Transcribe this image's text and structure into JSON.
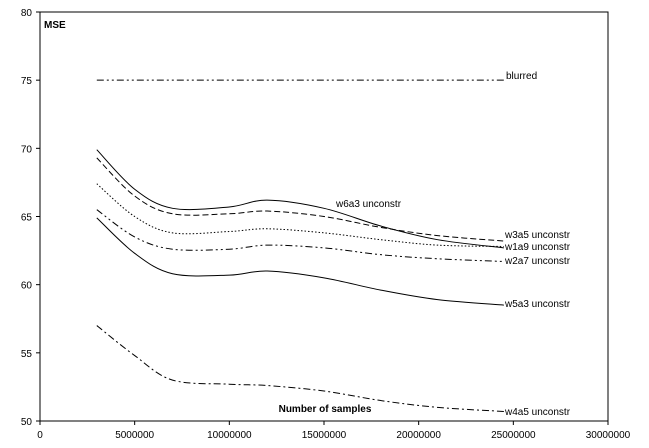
{
  "chart_data": {
    "type": "line",
    "title": "",
    "xlabel": "Number of samples",
    "ylabel": "MSE",
    "xlim": [
      0,
      30000000
    ],
    "ylim": [
      50,
      80
    ],
    "xticks": [
      0,
      5000000,
      10000000,
      15000000,
      20000000,
      25000000,
      30000000
    ],
    "xtick_labels": [
      "0",
      "5000000",
      "10000000",
      "15000000",
      "20000000",
      "25000000",
      "30000000"
    ],
    "yticks": [
      50,
      55,
      60,
      65,
      70,
      75,
      80
    ],
    "ytick_labels": [
      "50",
      "55",
      "60",
      "65",
      "70",
      "75",
      "80"
    ],
    "grid": false,
    "legend": "inline labels",
    "series": [
      {
        "name": "blurred",
        "style": "dashdotdot",
        "color": "#000000",
        "x": [
          3000000,
          24500000
        ],
        "y": [
          75,
          75
        ]
      },
      {
        "name": "w6a3 unconstr",
        "style": "solid",
        "color": "#000000",
        "x": [
          3000000,
          5000000,
          7000000,
          10000000,
          12000000,
          15000000,
          18000000,
          21000000,
          24500000
        ],
        "y": [
          69.9,
          67.0,
          65.6,
          65.7,
          66.2,
          65.6,
          64.3,
          63.3,
          62.7
        ]
      },
      {
        "name": "w3a5 unconstr",
        "style": "dashed",
        "color": "#000000",
        "x": [
          3000000,
          5000000,
          7000000,
          10000000,
          12000000,
          15000000,
          18000000,
          21000000,
          24500000
        ],
        "y": [
          69.3,
          66.5,
          65.2,
          65.2,
          65.4,
          65.0,
          64.2,
          63.6,
          63.2
        ]
      },
      {
        "name": "w1a9 unconstr",
        "style": "dotted",
        "color": "#000000",
        "x": [
          3000000,
          5000000,
          7000000,
          10000000,
          12000000,
          15000000,
          18000000,
          21000000,
          24500000
        ],
        "y": [
          67.4,
          65.0,
          63.8,
          63.9,
          64.1,
          63.8,
          63.3,
          62.9,
          62.8
        ]
      },
      {
        "name": "w2a7 unconstr",
        "style": "dashdotdot",
        "color": "#000000",
        "x": [
          3000000,
          5000000,
          7000000,
          10000000,
          12000000,
          15000000,
          18000000,
          21000000,
          24500000
        ],
        "y": [
          65.5,
          63.5,
          62.6,
          62.6,
          62.9,
          62.7,
          62.2,
          61.9,
          61.7
        ]
      },
      {
        "name": "w5a3 unconstr",
        "style": "solid",
        "color": "#000000",
        "x": [
          3000000,
          5000000,
          7000000,
          10000000,
          12000000,
          15000000,
          18000000,
          21000000,
          24500000
        ],
        "y": [
          64.9,
          62.3,
          60.8,
          60.7,
          61.0,
          60.5,
          59.6,
          58.9,
          58.5
        ]
      },
      {
        "name": "w4a5 unconstr",
        "style": "dashdot",
        "color": "#000000",
        "x": [
          3000000,
          5000000,
          7000000,
          10000000,
          12000000,
          15000000,
          18000000,
          21000000,
          24500000
        ],
        "y": [
          57.0,
          54.8,
          53.0,
          52.7,
          52.6,
          52.2,
          51.5,
          51.0,
          50.7
        ]
      }
    ]
  }
}
